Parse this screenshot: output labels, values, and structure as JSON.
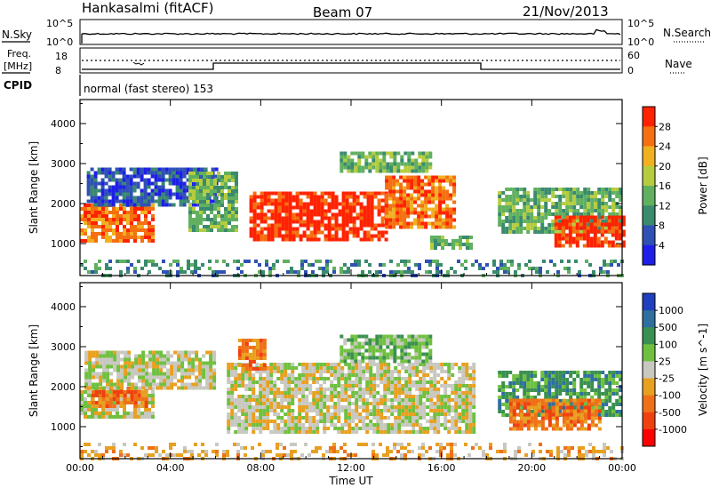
{
  "header": {
    "station": "Hankasalmi (fitACF)",
    "beam": "Beam 07",
    "date": "21/Nov/2013"
  },
  "strip_labels": {
    "nsky": "N.Sky",
    "nsearch": "N.Search",
    "freq_line1": "Freq.",
    "freq_line2": "[MHz]",
    "nave": "Nave",
    "cpid": "CPID",
    "cpid_value": "normal (fast stereo) 153",
    "noise_ticks_left": [
      "10^5",
      "10^0"
    ],
    "noise_ticks_right": [
      "10^5",
      "10^0"
    ],
    "freq_ticks": [
      "18",
      "8"
    ],
    "nave_ticks": [
      "60",
      "0"
    ]
  },
  "colors": {
    "power": [
      "#1e1ee8",
      "#2f50b4",
      "#3a8a6e",
      "#60b060",
      "#b6cc3e",
      "#f0b020",
      "#f47010",
      "#ff2200"
    ],
    "velocity": [
      "#1f3fbe",
      "#2f6fa0",
      "#3a9050",
      "#70c040",
      "#c8c8c0",
      "#e8a020",
      "#f07018",
      "#f04010",
      "#ff0000"
    ]
  },
  "chart_data": [
    {
      "type": "heatmap",
      "title": "Power",
      "ylabel": "Slant Range [km]",
      "xlabel": "",
      "ylim": [
        200,
        4600
      ],
      "xlim": [
        0,
        24
      ],
      "yticks": [
        "1000",
        "2000",
        "3000",
        "4000"
      ],
      "xticks": [
        "00:00",
        "04:00",
        "08:00",
        "12:00",
        "16:00",
        "20:00",
        "00:00"
      ],
      "colorbar": {
        "label": "Power [dB]",
        "ticks": [
          "4",
          "8",
          "12",
          "16",
          "20",
          "24",
          "28"
        ]
      },
      "regions": [
        {
          "t0": 0.0,
          "t1": 3.2,
          "r0": 1100,
          "r1": 2000,
          "level": 6
        },
        {
          "t0": 0.3,
          "t1": 6.0,
          "r0": 2000,
          "r1": 2900,
          "level": 1
        },
        {
          "t0": 4.8,
          "t1": 7.0,
          "r0": 1300,
          "r1": 2800,
          "level": 3
        },
        {
          "t0": 7.5,
          "t1": 13.5,
          "r0": 1100,
          "r1": 2300,
          "level": 7
        },
        {
          "t0": 13.5,
          "t1": 16.5,
          "r0": 1400,
          "r1": 2700,
          "level": 6
        },
        {
          "t0": 11.5,
          "t1": 15.5,
          "r0": 2800,
          "r1": 3300,
          "level": 3
        },
        {
          "t0": 15.5,
          "t1": 17.3,
          "r0": 900,
          "r1": 1200,
          "level": 3
        },
        {
          "t0": 18.5,
          "t1": 24.0,
          "r0": 1300,
          "r1": 2400,
          "level": 3
        },
        {
          "t0": 21.0,
          "t1": 24.0,
          "r0": 900,
          "r1": 1700,
          "level": 7
        },
        {
          "t0": 0.0,
          "t1": 24.0,
          "r0": 200,
          "r1": 600,
          "level": 2
        }
      ]
    },
    {
      "type": "heatmap",
      "title": "Velocity",
      "ylabel": "Slant Range [km]",
      "xlabel": "Time UT",
      "ylim": [
        200,
        4600
      ],
      "xlim": [
        0,
        24
      ],
      "yticks": [
        "1000",
        "2000",
        "3000",
        "4000"
      ],
      "xticks": [
        "00:00",
        "04:00",
        "08:00",
        "12:00",
        "16:00",
        "20:00",
        "00:00"
      ],
      "colorbar": {
        "label": "Velocity [m s^-1]",
        "ticks": [
          "1000",
          "500",
          "100",
          "25",
          "-25",
          "-100",
          "-500",
          "-1000"
        ]
      },
      "regions": [
        {
          "t0": 0.0,
          "t1": 3.2,
          "r0": 1200,
          "r1": 2000,
          "level": 4
        },
        {
          "t0": 0.5,
          "t1": 3.0,
          "r0": 1500,
          "r1": 2000,
          "level": 6
        },
        {
          "t0": 0.2,
          "t1": 6.0,
          "r0": 2000,
          "r1": 2900,
          "level": 4
        },
        {
          "t0": 6.5,
          "t1": 17.5,
          "r0": 900,
          "r1": 2600,
          "level": 4
        },
        {
          "t0": 11.5,
          "t1": 15.5,
          "r0": 2600,
          "r1": 3300,
          "level": 3
        },
        {
          "t0": 7.0,
          "t1": 8.2,
          "r0": 2400,
          "r1": 3200,
          "level": 6
        },
        {
          "t0": 18.5,
          "t1": 24.0,
          "r0": 1300,
          "r1": 2400,
          "level": 2
        },
        {
          "t0": 19.0,
          "t1": 23.0,
          "r0": 900,
          "r1": 1700,
          "level": 6
        },
        {
          "t0": 0.0,
          "t1": 24.0,
          "r0": 200,
          "r1": 600,
          "level": 5
        }
      ]
    }
  ]
}
